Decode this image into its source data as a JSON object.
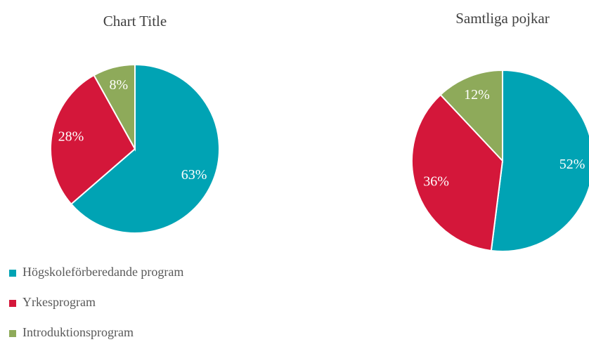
{
  "chart_data": [
    {
      "type": "pie",
      "title": "Chart Title",
      "categories": [
        "Högskoleförberedande program",
        "Yrkesprogram",
        "Introduktionsprogram"
      ],
      "values": [
        63,
        28,
        8
      ],
      "value_labels": [
        "63%",
        "28%",
        "8%"
      ],
      "colors": [
        "#00a3b4",
        "#d4173a",
        "#8eaa5a"
      ],
      "legend": true
    },
    {
      "type": "pie",
      "title": "Samtliga pojkar",
      "values": [
        52,
        36,
        12
      ],
      "value_labels": [
        "52%",
        "36%",
        "12%"
      ],
      "colors": [
        "#00a3b4",
        "#d4173a",
        "#8eaa5a"
      ]
    }
  ]
}
